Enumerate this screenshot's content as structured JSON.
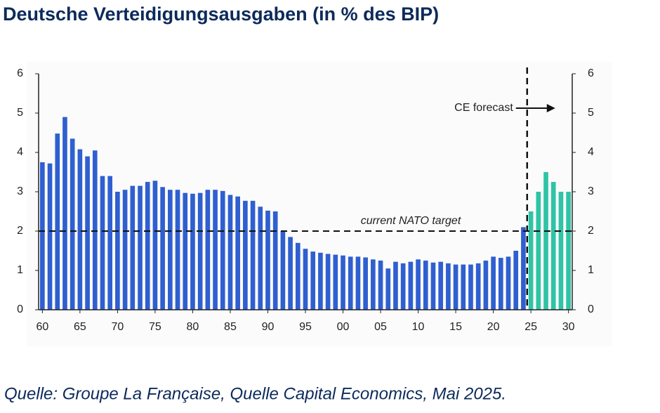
{
  "chart_data": {
    "type": "bar",
    "title": "Deutsche Verteidigungsausgaben (in % des BIP)",
    "source": "Quelle: Groupe La Française, Quelle Capital Economics, Mai 2025.",
    "x": [
      1960,
      1961,
      1962,
      1963,
      1964,
      1965,
      1966,
      1967,
      1968,
      1969,
      1970,
      1971,
      1972,
      1973,
      1974,
      1975,
      1976,
      1977,
      1978,
      1979,
      1980,
      1981,
      1982,
      1983,
      1984,
      1985,
      1986,
      1987,
      1988,
      1989,
      1990,
      1991,
      1992,
      1993,
      1994,
      1995,
      1996,
      1997,
      1998,
      1999,
      2000,
      2001,
      2002,
      2003,
      2004,
      2005,
      2006,
      2007,
      2008,
      2009,
      2010,
      2011,
      2012,
      2013,
      2014,
      2015,
      2016,
      2017,
      2018,
      2019,
      2020,
      2021,
      2022,
      2023,
      2024,
      2025,
      2026,
      2027,
      2028,
      2029,
      2030
    ],
    "series": [
      {
        "color": "#2f5fd0",
        "values": [
          3.75,
          3.72,
          4.48,
          4.9,
          4.35,
          4.08,
          3.9,
          4.05,
          3.4,
          3.4,
          3.0,
          3.05,
          3.15,
          3.15,
          3.25,
          3.28,
          3.12,
          3.05,
          3.05,
          2.97,
          2.95,
          2.97,
          3.05,
          3.05,
          3.02,
          2.92,
          2.88,
          2.77,
          2.77,
          2.62,
          2.52,
          2.5,
          2.0,
          1.85,
          1.7,
          1.55,
          1.48,
          1.45,
          1.42,
          1.4,
          1.38,
          1.35,
          1.35,
          1.33,
          1.28,
          1.25,
          1.05,
          1.22,
          1.18,
          1.22,
          1.28,
          1.25,
          1.2,
          1.22,
          1.18,
          1.15,
          1.15,
          1.15,
          1.18,
          1.25,
          1.35,
          1.32,
          1.35,
          1.5,
          2.1,
          null,
          null,
          null,
          null,
          null,
          null
        ]
      },
      {
        "color": "#2ec4a6",
        "values": [
          null,
          null,
          null,
          null,
          null,
          null,
          null,
          null,
          null,
          null,
          null,
          null,
          null,
          null,
          null,
          null,
          null,
          null,
          null,
          null,
          null,
          null,
          null,
          null,
          null,
          null,
          null,
          null,
          null,
          null,
          null,
          null,
          null,
          null,
          null,
          null,
          null,
          null,
          null,
          null,
          null,
          null,
          null,
          null,
          null,
          null,
          null,
          null,
          null,
          null,
          null,
          null,
          null,
          null,
          null,
          null,
          null,
          null,
          null,
          null,
          null,
          null,
          null,
          null,
          null,
          2.5,
          3.0,
          3.5,
          3.25,
          3.0,
          3.0
        ]
      }
    ],
    "xlim": [
      1959.5,
      2030.5
    ],
    "xticks": [
      {
        "value": 1960,
        "label": "60"
      },
      {
        "value": 1965,
        "label": "65"
      },
      {
        "value": 1970,
        "label": "70"
      },
      {
        "value": 1975,
        "label": "75"
      },
      {
        "value": 1980,
        "label": "80"
      },
      {
        "value": 1985,
        "label": "85"
      },
      {
        "value": 1990,
        "label": "90"
      },
      {
        "value": 1995,
        "label": "95"
      },
      {
        "value": 2000,
        "label": "00"
      },
      {
        "value": 2005,
        "label": "05"
      },
      {
        "value": 2010,
        "label": "10"
      },
      {
        "value": 2015,
        "label": "15"
      },
      {
        "value": 2020,
        "label": "20"
      },
      {
        "value": 2025,
        "label": "25"
      },
      {
        "value": 2030,
        "label": "30"
      }
    ],
    "ylim": [
      0,
      6
    ],
    "yticks": [
      0,
      1,
      2,
      3,
      4,
      5,
      6
    ],
    "y2lim": [
      0,
      6
    ],
    "y2ticks": [
      0,
      1,
      2,
      3,
      4,
      5,
      6
    ],
    "reference_line": {
      "value": 2,
      "label": "current NATO target"
    },
    "forecast_line": {
      "x": 2024.5,
      "label": "CE forecast"
    }
  }
}
